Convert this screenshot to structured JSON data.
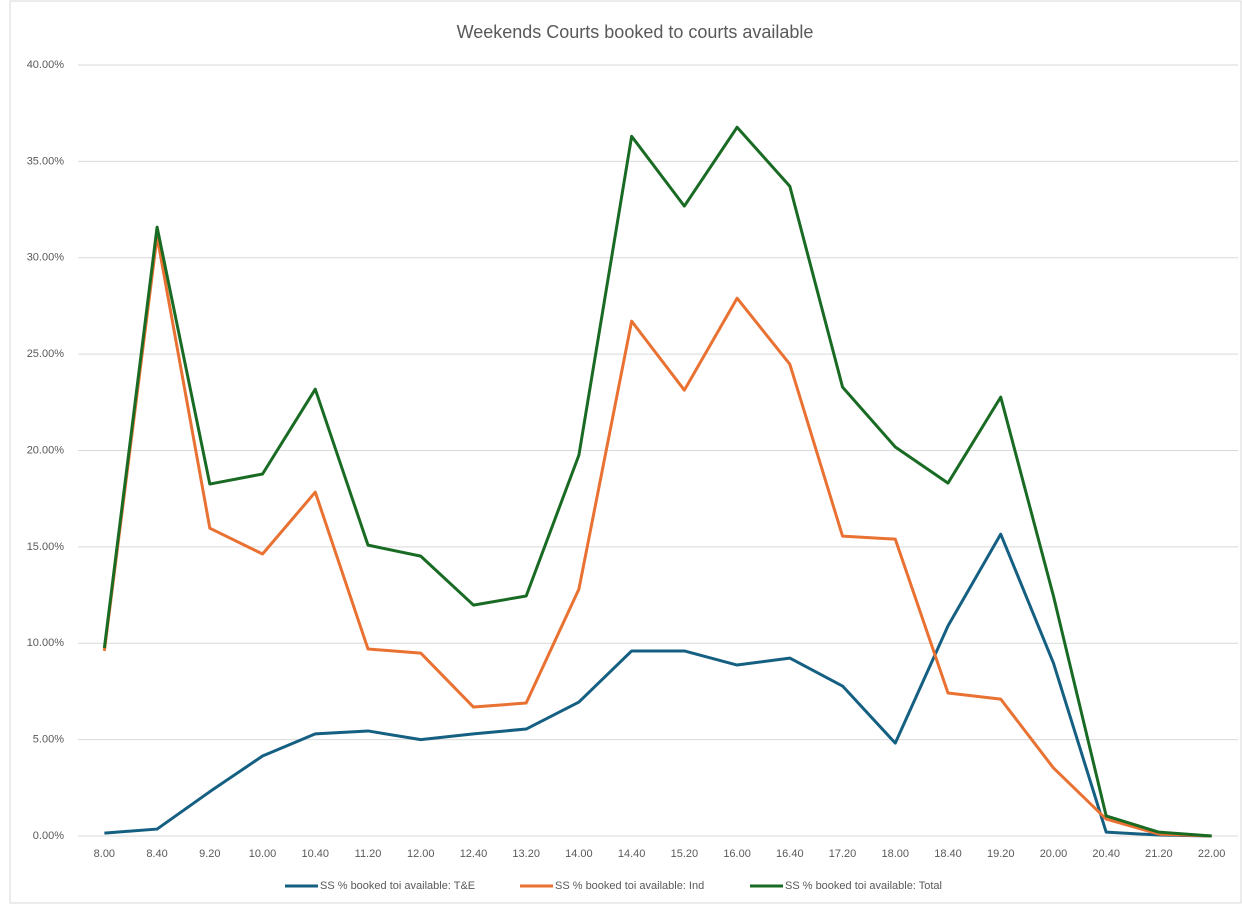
{
  "chart_data": {
    "type": "line",
    "title": "Weekends Courts booked to courts available",
    "categories": [
      "8.00",
      "8.40",
      "9.20",
      "10.00",
      "10.40",
      "11.20",
      "12.00",
      "12.40",
      "13.20",
      "14.00",
      "14.40",
      "15.20",
      "16.00",
      "16.40",
      "17.20",
      "18.00",
      "18.40",
      "19.20",
      "20.00",
      "20.40",
      "21.20",
      "22.00"
    ],
    "series": [
      {
        "name": "SS % booked toi available: T&E",
        "color": "#156082",
        "values": [
          0.15,
          0.36,
          2.3,
          4.15,
          5.3,
          5.45,
          5.0,
          5.3,
          5.55,
          6.95,
          9.6,
          9.6,
          8.87,
          9.23,
          7.78,
          4.82,
          10.9,
          15.66,
          8.97,
          0.2,
          0.05,
          0
        ]
      },
      {
        "name": "SS % booked toi available: Ind",
        "color": "#e97132",
        "values": [
          9.6,
          31.1,
          15.97,
          14.63,
          17.84,
          9.7,
          9.49,
          6.69,
          6.9,
          12.81,
          26.71,
          23.13,
          27.9,
          24.48,
          15.56,
          15.4,
          7.42,
          7.1,
          3.53,
          0.88,
          0.1,
          0
        ]
      },
      {
        "name": "SS % booked toi available: Total",
        "color": "#196b24",
        "values": [
          9.75,
          31.59,
          18.26,
          18.78,
          23.18,
          15.09,
          14.52,
          11.98,
          12.45,
          19.76,
          36.3,
          32.68,
          36.77,
          33.71,
          23.29,
          20.18,
          18.31,
          22.77,
          12.45,
          1.04,
          0.2,
          0
        ]
      }
    ],
    "ylim": [
      0,
      40
    ],
    "yticks": [
      {
        "value": 0,
        "label": "0.00%"
      },
      {
        "value": 5,
        "label": "5.00%"
      },
      {
        "value": 10,
        "label": "10.00%"
      },
      {
        "value": 15,
        "label": "15.00%"
      },
      {
        "value": 20,
        "label": "20.00%"
      },
      {
        "value": 25,
        "label": "25.00%"
      },
      {
        "value": 30,
        "label": "30.00%"
      },
      {
        "value": 35,
        "label": "35.00%"
      },
      {
        "value": 40,
        "label": "40.00%"
      }
    ],
    "grid": true,
    "legend": "bottom"
  }
}
